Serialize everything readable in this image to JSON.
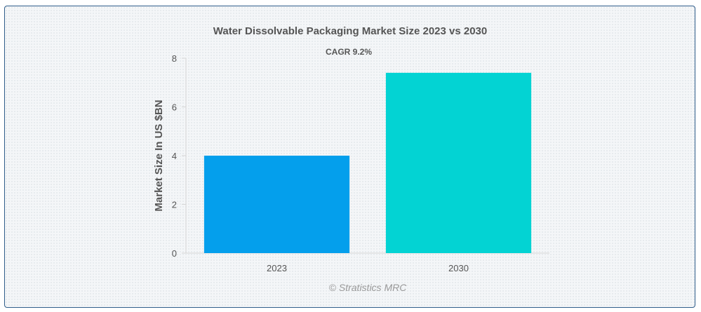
{
  "chart_data": {
    "type": "bar",
    "title": "Water Dissolvable Packaging Market Size 2023 vs 2030",
    "subtitle": "CAGR 9.2%",
    "xlabel": "",
    "ylabel": "Market Size In US $BN",
    "categories": [
      "2023",
      "2030"
    ],
    "values": [
      4.0,
      7.4
    ],
    "ylim": [
      0,
      8
    ],
    "yticks": [
      "0",
      "2",
      "4",
      "6",
      "8"
    ],
    "bar_colors": [
      "#049fec",
      "#03d3d3"
    ],
    "grid": false,
    "legend": "none"
  },
  "credit": "© Stratistics MRC"
}
